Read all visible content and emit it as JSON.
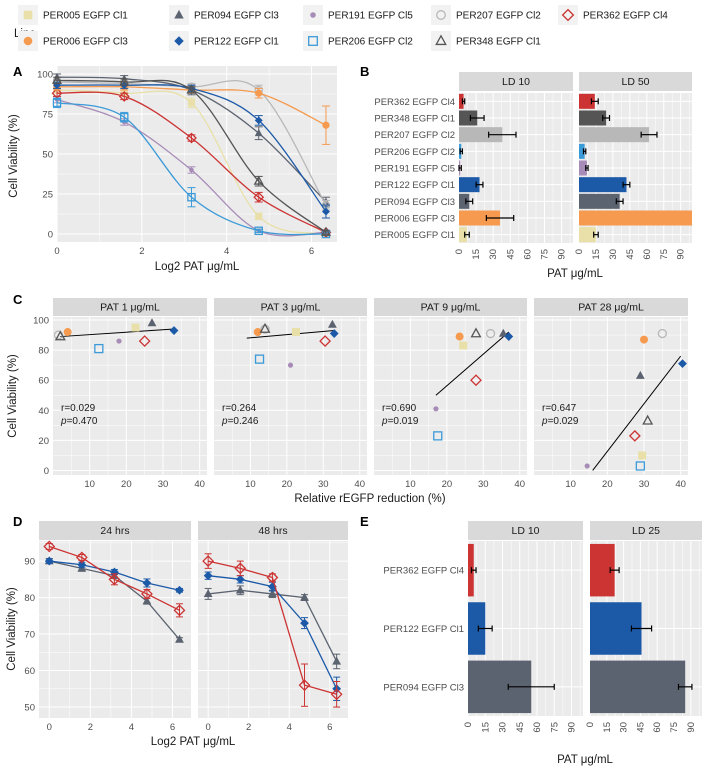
{
  "legend": {
    "title": "Line",
    "items": [
      {
        "label": "PER005 EGFP Cl1",
        "color": "#e8e0a8",
        "shape": "square"
      },
      {
        "label": "PER094 EGFP Cl3",
        "color": "#5c6370",
        "shape": "triangle"
      },
      {
        "label": "PER191 EGFP Cl5",
        "color": "#a88cb8",
        "shape": "dot"
      },
      {
        "label": "PER207 EGFP Cl2",
        "color": "#b8b8b8",
        "shape": "circle-open"
      },
      {
        "label": "PER362 EGFP Cl4",
        "color": "#cc3333",
        "shape": "diamond-open"
      },
      {
        "label": "PER006 EGFP Cl3",
        "color": "#f59a4e",
        "shape": "circle"
      },
      {
        "label": "PER122 EGFP Cl1",
        "color": "#1c5aa8",
        "shape": "diamond"
      },
      {
        "label": "PER206 EGFP Cl2",
        "color": "#3b9ad8",
        "shape": "square-open"
      },
      {
        "label": "PER348 EGFP Cl1",
        "color": "#555555",
        "shape": "triangle-open"
      }
    ]
  },
  "chart_data": [
    {
      "panel": "A",
      "type": "line",
      "xlabel": "Log2 PAT μg/mL",
      "ylabel": "Cell Viability (%)",
      "xlim": [
        0,
        6.6
      ],
      "ylim": [
        -5,
        105
      ],
      "xticks": [
        "0",
        "2",
        "4",
        "6"
      ],
      "yticks": [
        "0",
        "25",
        "50",
        "75",
        "100"
      ],
      "x": [
        0,
        1.585,
        3.17,
        4.755,
        6.34
      ],
      "series": [
        {
          "name": "PER005 EGFP Cl1",
          "values": [
            90,
            88,
            82,
            11,
            0
          ],
          "err": [
            2,
            2,
            3,
            2,
            1
          ]
        },
        {
          "name": "PER094 EGFP Cl3",
          "values": [
            98,
            97,
            90,
            63,
            20
          ],
          "err": [
            2,
            2,
            3,
            4,
            3
          ]
        },
        {
          "name": "PER191 EGFP Cl5",
          "values": [
            84,
            70,
            40,
            2,
            1
          ],
          "err": [
            2,
            2,
            2,
            1,
            1
          ]
        },
        {
          "name": "PER207 EGFP Cl2",
          "values": [
            95,
            94,
            92,
            90,
            18
          ],
          "err": [
            2,
            2,
            2,
            3,
            3
          ]
        },
        {
          "name": "PER362 EGFP Cl4",
          "values": [
            88,
            86,
            60,
            23,
            1
          ],
          "err": [
            2,
            2,
            2,
            3,
            1
          ]
        },
        {
          "name": "PER006 EGFP Cl3",
          "values": [
            92,
            92,
            90,
            88,
            68
          ],
          "err": [
            2,
            2,
            2,
            3,
            12
          ]
        },
        {
          "name": "PER122 EGFP Cl1",
          "values": [
            93,
            93,
            91,
            71,
            14
          ],
          "err": [
            2,
            2,
            2,
            3,
            4
          ]
        },
        {
          "name": "PER206 EGFP Cl2",
          "values": [
            82,
            73,
            23,
            2,
            0
          ],
          "err": [
            3,
            3,
            6,
            1,
            1
          ]
        },
        {
          "name": "PER348 EGFP Cl1",
          "values": [
            96,
            95,
            90,
            33,
            1
          ],
          "err": [
            2,
            2,
            2,
            3,
            1
          ]
        }
      ]
    },
    {
      "panel": "B",
      "type": "bar",
      "orientation": "horizontal",
      "xlabel": "PAT μg/mL",
      "xlim": [
        0,
        100
      ],
      "xticks": [
        "0",
        "15",
        "30",
        "45",
        "60",
        "75",
        "90"
      ],
      "categories": [
        "PER362 EGFP Cl4",
        "PER348 EGFP Cl1",
        "PER207 EGFP Cl2",
        "PER206 EGFP Cl2",
        "PER191 EGFP Cl5",
        "PER122 EGFP Cl1",
        "PER094 EGFP Cl3",
        "PER006 EGFP Cl3",
        "PER005 EGFP Cl1"
      ],
      "facets": [
        {
          "title": "LD 10",
          "values": [
            4,
            16,
            38,
            2,
            1,
            18,
            9,
            36,
            7
          ],
          "err": [
            1,
            6,
            12,
            1,
            1,
            3,
            3,
            12,
            2
          ]
        },
        {
          "title": "LD 50",
          "values": [
            14,
            24,
            62,
            5,
            7,
            42,
            36,
            100,
            15
          ],
          "err": [
            3,
            3,
            7,
            1,
            1,
            3,
            3,
            0,
            2
          ]
        }
      ]
    },
    {
      "panel": "C",
      "type": "scatter",
      "xlabel": "Relative rEGFP reduction (%)",
      "ylabel": "Cell Viability (%)",
      "xlim": [
        0,
        42
      ],
      "ylim": [
        -3,
        102
      ],
      "xticks": [
        "10",
        "20",
        "30",
        "40"
      ],
      "yticks": [
        "0",
        "20",
        "40",
        "60",
        "80",
        "100"
      ],
      "facets": [
        {
          "title": "PAT 1 μg/mL",
          "r": "r=0.029",
          "p": "=0.470",
          "fit": [
            [
              2,
              89
            ],
            [
              33,
              94
            ]
          ],
          "points": [
            [
              22.5,
              95
            ],
            [
              27,
              98
            ],
            [
              18,
              86
            ],
            [
              1.5,
              90
            ],
            [
              25,
              86
            ],
            [
              4,
              92
            ],
            [
              33,
              93
            ],
            [
              12.5,
              81
            ],
            [
              2,
              89
            ]
          ]
        },
        {
          "title": "PAT 3 μg/mL",
          "r": "r=0.264",
          "p": "=0.246",
          "fit": [
            [
              9,
              88
            ],
            [
              33,
              93
            ]
          ],
          "points": [
            [
              22.5,
              92
            ],
            [
              32.5,
              97
            ],
            [
              21,
              70
            ],
            [
              14,
              94
            ],
            [
              30.5,
              86
            ],
            [
              12,
              92
            ],
            [
              33,
              91
            ],
            [
              12.5,
              74
            ],
            [
              14,
              94
            ]
          ]
        },
        {
          "title": "PAT 9 μg/mL",
          "r": "r=0.690",
          "p": "=0.019",
          "fit": [
            [
              17,
              50
            ],
            [
              37,
              92
            ]
          ],
          "points": [
            [
              24.5,
              83
            ],
            [
              35.5,
              91
            ],
            [
              17,
              41
            ],
            [
              32,
              91
            ],
            [
              28,
              60
            ],
            [
              23.5,
              89
            ],
            [
              37,
              89
            ],
            [
              17.5,
              23
            ],
            [
              28,
              91
            ]
          ]
        },
        {
          "title": "PAT 28 μg/mL",
          "r": "r=0.647",
          "p": "=0.029",
          "fit": [
            [
              16,
              0
            ],
            [
              40,
              76
            ]
          ],
          "points": [
            [
              29.5,
              10
            ],
            [
              29,
              63
            ],
            [
              14.5,
              3
            ],
            [
              35,
              91
            ],
            [
              27.5,
              23
            ],
            [
              30,
              87
            ],
            [
              40.5,
              71
            ],
            [
              29,
              3
            ],
            [
              31,
              33
            ]
          ]
        }
      ]
    },
    {
      "panel": "D",
      "type": "line",
      "xlabel": "Log2 PAT μg/mL",
      "ylabel": "Cell Viability (%)",
      "xlim": [
        -0.5,
        6.9
      ],
      "ylim": [
        47,
        95.5
      ],
      "xticks": [
        "0",
        "2",
        "4",
        "6"
      ],
      "yticks": [
        "50",
        "60",
        "70",
        "80",
        "90"
      ],
      "x": [
        0,
        1.585,
        3.17,
        4.755,
        6.34
      ],
      "facets": [
        {
          "title": "24 hrs",
          "series": [
            {
              "name": "PER094 EGFP Cl3",
              "values": [
                90,
                88,
                86,
                79,
                68.5
              ],
              "err": [
                0.7,
                0.8,
                0.8,
                0.8,
                0.5
              ]
            },
            {
              "name": "PER122 EGFP Cl1",
              "values": [
                90,
                89,
                87,
                84,
                82
              ],
              "err": [
                0.6,
                0.7,
                0.7,
                1.1,
                0.5
              ]
            },
            {
              "name": "PER362 EGFP Cl4",
              "values": [
                94,
                91,
                85,
                81,
                76.5
              ],
              "err": [
                0.8,
                0.8,
                1.5,
                1.2,
                1.8
              ]
            }
          ]
        },
        {
          "title": "48 hrs",
          "series": [
            {
              "name": "PER094 EGFP Cl3",
              "values": [
                81,
                82,
                81,
                80,
                62.5
              ],
              "err": [
                1.5,
                1.2,
                1.0,
                0.8,
                2.0
              ]
            },
            {
              "name": "PER122 EGFP Cl1",
              "values": [
                86,
                85,
                83,
                73,
                55
              ],
              "err": [
                1.0,
                1.0,
                1.2,
                1.5,
                3.2
              ]
            },
            {
              "name": "PER362 EGFP Cl4",
              "values": [
                90,
                88,
                85.5,
                56,
                53.5
              ],
              "err": [
                2.0,
                2.0,
                1.0,
                5.8,
                3.5
              ]
            }
          ]
        }
      ]
    },
    {
      "panel": "E",
      "type": "bar",
      "orientation": "horizontal",
      "xlabel": "PAT μg/mL",
      "xlim": [
        0,
        100
      ],
      "xticks": [
        "0",
        "15",
        "30",
        "45",
        "60",
        "75",
        "90"
      ],
      "categories": [
        "PER362 EGFP Cl4",
        "PER122 EGFP Cl1",
        "PER094 EGFP Cl3"
      ],
      "facets": [
        {
          "title": "LD 10",
          "values": [
            5,
            15,
            55
          ],
          "err": [
            2,
            6,
            20
          ]
        },
        {
          "title": "LD 25",
          "values": [
            22,
            46,
            85
          ],
          "err": [
            4,
            9,
            6
          ]
        }
      ]
    }
  ]
}
